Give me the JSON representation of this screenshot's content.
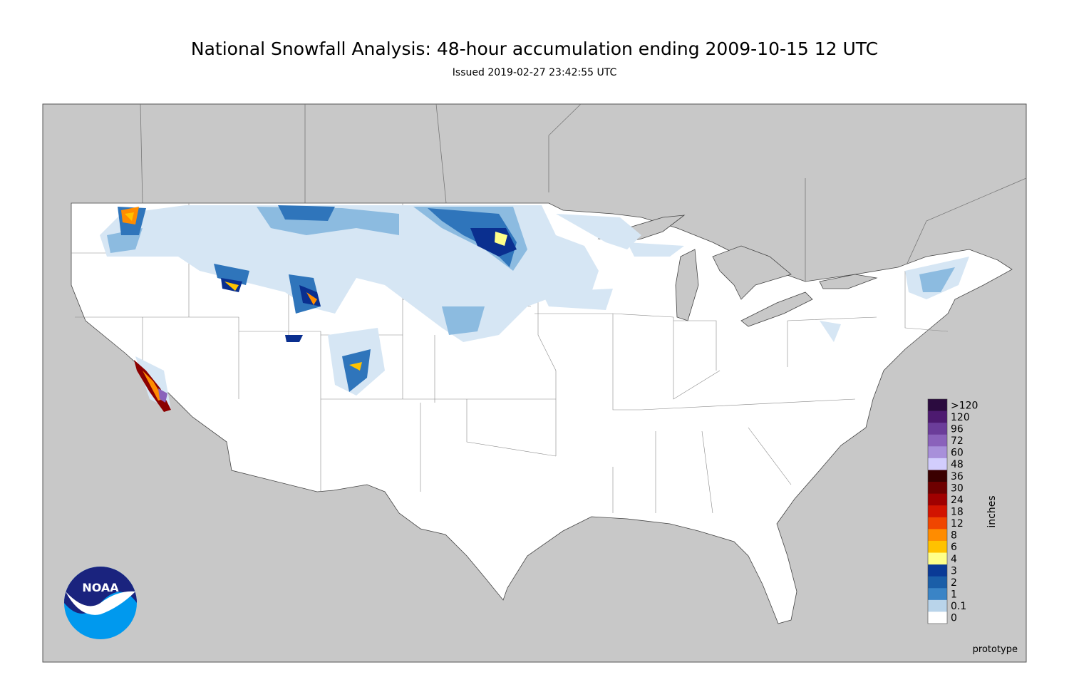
{
  "title": "National Snowfall Analysis: 48-hour accumulation ending 2009-10-15 12 UTC",
  "subtitle": "Issued 2019-02-27 23:42:55 UTC",
  "legend": {
    "title": "inches",
    "items": [
      {
        "label": ">120",
        "color": "#2b0b3f"
      },
      {
        "label": 120,
        "color": "#4d1a70"
      },
      {
        "label": 96,
        "color": "#6b3d9a"
      },
      {
        "label": 72,
        "color": "#8a62bb"
      },
      {
        "label": 60,
        "color": "#a890da"
      },
      {
        "label": 48,
        "color": "#d2cdfd"
      },
      {
        "label": 36,
        "color": "#3a0000"
      },
      {
        "label": 30,
        "color": "#6e0000"
      },
      {
        "label": 24,
        "color": "#a00000"
      },
      {
        "label": 18,
        "color": "#d21400"
      },
      {
        "label": 12,
        "color": "#f04600"
      },
      {
        "label": 8,
        "color": "#ff8c00"
      },
      {
        "label": 6,
        "color": "#ffc200"
      },
      {
        "label": 4,
        "color": "#ffff8a"
      },
      {
        "label": 3,
        "color": "#0a3a96"
      },
      {
        "label": 2,
        "color": "#1a5ea8"
      },
      {
        "label": 1,
        "color": "#3a84c6"
      },
      {
        "label": 0.1,
        "color": "#b9d4ea"
      },
      {
        "label": 0,
        "color": "#ffffff"
      }
    ]
  },
  "logo": "NOAA",
  "watermark": "prototype"
}
